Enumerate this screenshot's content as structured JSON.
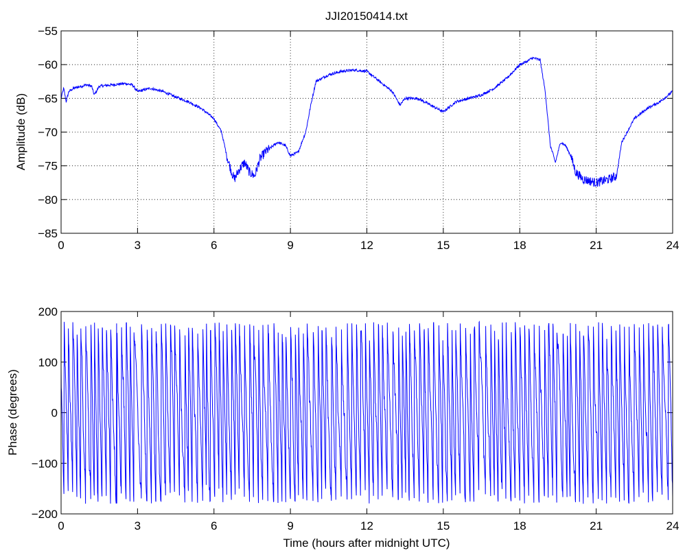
{
  "chart_data": [
    {
      "type": "line",
      "title": "JJI20150414.txt",
      "xlabel": "",
      "ylabel": "Amplitude (dB)",
      "xlim": [
        0,
        24
      ],
      "ylim": [
        -85,
        -55
      ],
      "xticks": [
        0,
        3,
        6,
        9,
        12,
        15,
        18,
        21,
        24
      ],
      "yticks": [
        -85,
        -80,
        -75,
        -70,
        -65,
        -60,
        -55
      ],
      "xtick_labels": [
        "0",
        "3",
        "6",
        "9",
        "12",
        "15",
        "18",
        "21",
        "24"
      ],
      "ytick_labels": [
        "−85",
        "−80",
        "−75",
        "−70",
        "−65",
        "−60",
        "−55"
      ],
      "grid": true,
      "series": [
        {
          "color": "#0000ff",
          "noise": 0.4,
          "x": [
            0,
            0.1,
            0.2,
            0.3,
            0.5,
            0.8,
            1.0,
            1.2,
            1.3,
            1.5,
            2.0,
            2.5,
            2.8,
            3.0,
            3.5,
            4.0,
            4.5,
            5.0,
            5.5,
            6.0,
            6.3,
            6.5,
            6.7,
            6.8,
            7.0,
            7.2,
            7.4,
            7.6,
            7.8,
            8.0,
            8.5,
            8.8,
            9.0,
            9.3,
            9.6,
            9.8,
            10.0,
            10.5,
            11.0,
            11.5,
            12.0,
            12.5,
            13.0,
            13.3,
            13.5,
            14.0,
            14.5,
            15.0,
            15.5,
            16.0,
            16.5,
            17.0,
            17.5,
            18.0,
            18.3,
            18.5,
            18.8,
            19.0,
            19.2,
            19.4,
            19.6,
            19.8,
            20.0,
            20.2,
            20.5,
            21.0,
            21.5,
            21.8,
            22.0,
            22.5,
            23.0,
            23.5,
            24.0
          ],
          "y": [
            -65,
            -63.5,
            -65.5,
            -64,
            -63.5,
            -63.2,
            -63.0,
            -63.2,
            -64.5,
            -63.2,
            -63.0,
            -62.8,
            -63.0,
            -64.0,
            -63.5,
            -64.0,
            -64.8,
            -65.5,
            -66.5,
            -68.0,
            -70.0,
            -73.5,
            -76.0,
            -77.0,
            -75.5,
            -74.5,
            -76.0,
            -76.5,
            -74.0,
            -73.0,
            -71.5,
            -72.0,
            -73.5,
            -73.0,
            -70.0,
            -66.0,
            -62.5,
            -61.5,
            -61.0,
            -60.8,
            -61.0,
            -62.5,
            -64.0,
            -66.0,
            -65.0,
            -65.0,
            -66.0,
            -67.0,
            -65.5,
            -65.0,
            -64.5,
            -63.5,
            -62.0,
            -60.0,
            -59.5,
            -59.0,
            -59.3,
            -64.0,
            -72.0,
            -74.5,
            -71.5,
            -72.0,
            -73.5,
            -76.0,
            -77.0,
            -77.5,
            -77.0,
            -76.5,
            -71.5,
            -68.0,
            -66.5,
            -65.5,
            -64.0
          ]
        }
      ]
    },
    {
      "type": "line",
      "title": "",
      "xlabel": "Time (hours after midnight UTC)",
      "ylabel": "Phase (degrees)",
      "xlim": [
        0,
        24
      ],
      "ylim": [
        -200,
        200
      ],
      "xticks": [
        0,
        3,
        6,
        9,
        12,
        15,
        18,
        21,
        24
      ],
      "yticks": [
        -200,
        -100,
        0,
        100,
        200
      ],
      "xtick_labels": [
        "0",
        "3",
        "6",
        "9",
        "12",
        "15",
        "18",
        "21",
        "24"
      ],
      "ytick_labels": [
        "−200",
        "−100",
        "0",
        "100",
        "200"
      ],
      "grid": false,
      "series": [
        {
          "color": "#0000ff",
          "wrap": [
            -180,
            180
          ],
          "cycles_per_hour": 5.5
        }
      ]
    }
  ]
}
